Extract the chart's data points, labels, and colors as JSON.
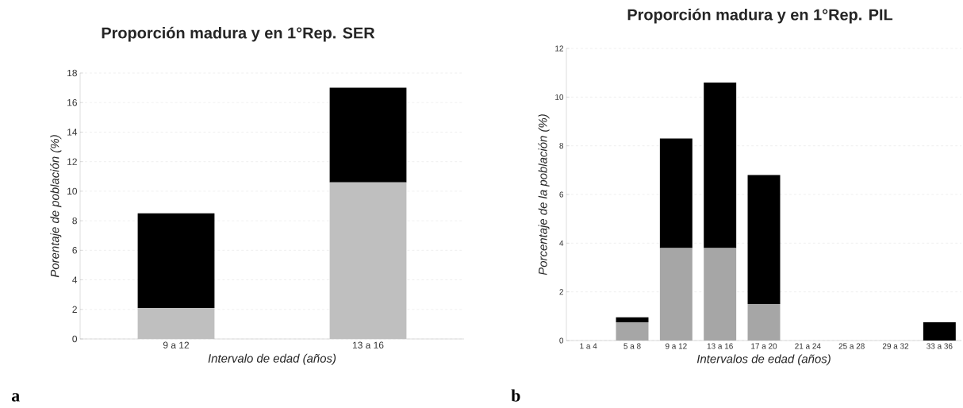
{
  "chart_data": [
    {
      "type": "bar",
      "title": "Proporción madura y en 1°Rep. SER",
      "xlabel": "Intervalo de edad (años)",
      "ylabel": "Porentaje de población (%)",
      "categories": [
        "9 a 12",
        "13 a 16"
      ],
      "stacked": true,
      "series": [
        {
          "color": "#bfbfbf",
          "values": [
            2.1,
            10.6
          ]
        },
        {
          "color": "#000000",
          "values": [
            6.4,
            6.4
          ]
        }
      ],
      "ylim": [
        0,
        18
      ],
      "yticks": [
        0,
        2,
        4,
        6,
        8,
        10,
        12,
        14,
        16,
        18
      ],
      "grid": "y",
      "annotations": [
        "a"
      ]
    },
    {
      "type": "bar",
      "title": "Proporción madura y en 1°Rep. PIL",
      "xlabel": "Intervalos de edad (años)",
      "ylabel": "Porcentaje de la población (%)",
      "categories": [
        "1 a 4",
        "5 a 8",
        "9 a 12",
        "13 a 16",
        "17 a 20",
        "21 a 24",
        "25 a 28",
        "29 a 32",
        "33 a 36"
      ],
      "stacked": true,
      "series": [
        {
          "color": "#a6a6a6",
          "values": [
            0,
            0.75,
            3.8,
            3.8,
            1.5,
            0,
            0,
            0,
            0
          ]
        },
        {
          "color": "#000000",
          "values": [
            0,
            0.2,
            4.5,
            6.8,
            5.3,
            0,
            0,
            0,
            0.75
          ]
        }
      ],
      "ylim": [
        0,
        12
      ],
      "yticks": [
        0,
        2,
        4,
        6,
        8,
        10,
        12
      ],
      "grid": "y",
      "annotations": [
        "b"
      ]
    }
  ]
}
